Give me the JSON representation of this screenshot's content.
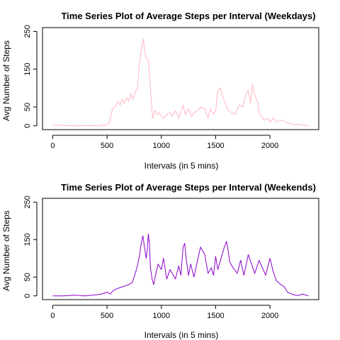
{
  "chart_data": [
    {
      "type": "line",
      "title": "Time Series Plot of Average Steps per Interval (Weekdays)",
      "xlabel": "Intervals (in 5 mins)",
      "ylabel": "Avg Number of Steps",
      "xlim": [
        0,
        2355
      ],
      "ylim": [
        0,
        250
      ],
      "x_ticks": [
        0,
        500,
        1000,
        1500,
        2000
      ],
      "y_ticks": [
        0,
        50,
        150,
        250
      ],
      "grid": false,
      "series": [
        {
          "color": "#FFB6C1",
          "x": [
            0,
            100,
            200,
            300,
            400,
            500,
            520,
            550,
            570,
            600,
            620,
            640,
            660,
            680,
            700,
            720,
            740,
            760,
            780,
            800,
            820,
            835,
            845,
            860,
            880,
            900,
            910,
            920,
            940,
            960,
            980,
            1000,
            1020,
            1050,
            1080,
            1100,
            1130,
            1160,
            1200,
            1220,
            1250,
            1280,
            1300,
            1330,
            1360,
            1400,
            1430,
            1450,
            1480,
            1500,
            1520,
            1545,
            1560,
            1580,
            1600,
            1620,
            1650,
            1680,
            1700,
            1720,
            1750,
            1780,
            1800,
            1820,
            1840,
            1850,
            1870,
            1890,
            1900,
            1920,
            1950,
            1980,
            2000,
            2030,
            2060,
            2100,
            2130,
            2160,
            2200,
            2230,
            2260,
            2300,
            2355
          ],
          "values": [
            2,
            1,
            0,
            1,
            0,
            3,
            8,
            45,
            50,
            65,
            55,
            70,
            60,
            75,
            65,
            85,
            70,
            90,
            100,
            170,
            210,
            230,
            200,
            180,
            175,
            100,
            60,
            20,
            40,
            30,
            35,
            25,
            20,
            30,
            35,
            25,
            40,
            20,
            55,
            30,
            45,
            25,
            35,
            40,
            50,
            45,
            20,
            45,
            30,
            40,
            95,
            100,
            80,
            65,
            50,
            40,
            35,
            30,
            45,
            55,
            50,
            85,
            95,
            60,
            110,
            90,
            75,
            60,
            35,
            25,
            15,
            20,
            10,
            20,
            10,
            15,
            12,
            8,
            5,
            3,
            4,
            2,
            1
          ]
        }
      ]
    },
    {
      "type": "line",
      "title": "Time Series Plot of Average Steps per Interval (Weekends)",
      "xlabel": "Intervals (in 5 mins)",
      "ylabel": "Avg Number of Steps",
      "xlim": [
        0,
        2355
      ],
      "ylim": [
        0,
        250
      ],
      "x_ticks": [
        0,
        500,
        1000,
        1500,
        2000
      ],
      "y_ticks": [
        0,
        50,
        150,
        250
      ],
      "grid": false,
      "series": [
        {
          "color": "#8B00CC",
          "x": [
            0,
            100,
            200,
            300,
            400,
            450,
            500,
            530,
            560,
            600,
            650,
            700,
            730,
            760,
            780,
            800,
            815,
            830,
            845,
            860,
            870,
            880,
            890,
            900,
            915,
            930,
            950,
            970,
            1000,
            1020,
            1050,
            1080,
            1100,
            1130,
            1160,
            1180,
            1200,
            1215,
            1230,
            1250,
            1270,
            1300,
            1330,
            1360,
            1400,
            1430,
            1460,
            1480,
            1500,
            1520,
            1550,
            1580,
            1600,
            1615,
            1630,
            1660,
            1700,
            1730,
            1760,
            1800,
            1830,
            1860,
            1900,
            1930,
            1960,
            2000,
            2030,
            2060,
            2100,
            2130,
            2160,
            2200,
            2230,
            2260,
            2300,
            2330,
            2355
          ],
          "values": [
            0,
            0,
            2,
            0,
            3,
            5,
            10,
            5,
            15,
            20,
            25,
            30,
            35,
            60,
            80,
            110,
            140,
            160,
            130,
            100,
            120,
            165,
            140,
            75,
            45,
            30,
            60,
            85,
            70,
            100,
            45,
            70,
            60,
            45,
            80,
            55,
            130,
            140,
            95,
            55,
            85,
            50,
            90,
            130,
            110,
            60,
            75,
            55,
            105,
            70,
            100,
            130,
            145,
            120,
            90,
            75,
            60,
            95,
            55,
            110,
            85,
            60,
            95,
            75,
            55,
            100,
            65,
            40,
            30,
            25,
            10,
            5,
            2,
            1,
            5,
            2,
            0
          ]
        }
      ]
    }
  ]
}
